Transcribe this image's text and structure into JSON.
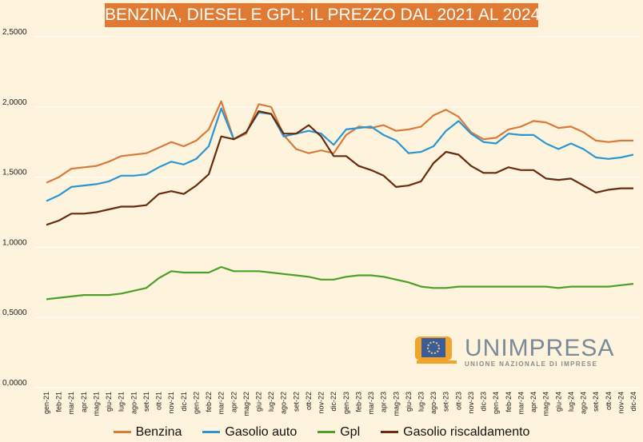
{
  "title": "BENZINA, DIESEL E GPL: IL PREZZO DAL 2021 AL 2024",
  "logo": {
    "name": "UNIMPRESA",
    "tagline": "UNIONE NAZIONALE DI IMPRESE"
  },
  "colors": {
    "background": "#fef4dd",
    "title_bg": "#e07a32",
    "grid": "#ffffff"
  },
  "chart_data": {
    "type": "line",
    "title": "BENZINA, DIESEL E GPL: IL PREZZO DAL 2021 AL 2024",
    "xlabel": "",
    "ylabel": "",
    "ylim": [
      0,
      2.5
    ],
    "yticks": [
      "0,0000",
      "0,5000",
      "1,0000",
      "1,5000",
      "2,0000",
      "2,5000"
    ],
    "grid": true,
    "legend_position": "bottom",
    "categories": [
      "gen-21",
      "feb-21",
      "mar-21",
      "apr-21",
      "mag-21",
      "giu-21",
      "lug-21",
      "ago-21",
      "set-21",
      "ott-21",
      "nov-21",
      "dic-21",
      "gen-22",
      "feb-22",
      "mar-22",
      "apr-22",
      "mag-22",
      "giu-22",
      "lug-22",
      "ago-22",
      "set-22",
      "ott-22",
      "nov-22",
      "dic-22",
      "gen-23",
      "feb-23",
      "mar-23",
      "apr-23",
      "mag-23",
      "giu-23",
      "lug-23",
      "ago-23",
      "set-23",
      "ott-23",
      "nov-23",
      "dic-23",
      "gen-24",
      "feb-24",
      "mar-24",
      "apr-24",
      "mag-24",
      "giu-24",
      "lug-24",
      "ago-24",
      "set-24",
      "ott-24",
      "nov-24",
      "dic-24"
    ],
    "series": [
      {
        "name": "Benzina",
        "color": "#d97a3a",
        "values": [
          1.46,
          1.5,
          1.56,
          1.57,
          1.58,
          1.61,
          1.65,
          1.66,
          1.67,
          1.71,
          1.75,
          1.72,
          1.76,
          1.84,
          2.04,
          1.77,
          1.81,
          2.02,
          2.0,
          1.8,
          1.7,
          1.67,
          1.69,
          1.67,
          1.8,
          1.86,
          1.85,
          1.87,
          1.83,
          1.84,
          1.86,
          1.94,
          1.98,
          1.93,
          1.82,
          1.77,
          1.78,
          1.84,
          1.86,
          1.9,
          1.89,
          1.85,
          1.86,
          1.82,
          1.76,
          1.75,
          1.76,
          1.76
        ]
      },
      {
        "name": "Gasolio auto",
        "color": "#2b96d2",
        "values": [
          1.33,
          1.37,
          1.43,
          1.44,
          1.45,
          1.47,
          1.51,
          1.51,
          1.52,
          1.57,
          1.61,
          1.59,
          1.63,
          1.72,
          1.99,
          1.77,
          1.82,
          1.96,
          1.95,
          1.79,
          1.81,
          1.83,
          1.81,
          1.73,
          1.84,
          1.85,
          1.86,
          1.8,
          1.76,
          1.67,
          1.68,
          1.72,
          1.83,
          1.9,
          1.81,
          1.75,
          1.74,
          1.81,
          1.8,
          1.8,
          1.74,
          1.7,
          1.74,
          1.7,
          1.64,
          1.63,
          1.64,
          1.66
        ]
      },
      {
        "name": "Gpl",
        "color": "#4d9f2a",
        "values": [
          0.63,
          0.64,
          0.65,
          0.66,
          0.66,
          0.66,
          0.67,
          0.69,
          0.71,
          0.78,
          0.83,
          0.82,
          0.82,
          0.82,
          0.86,
          0.83,
          0.83,
          0.83,
          0.82,
          0.81,
          0.8,
          0.79,
          0.77,
          0.77,
          0.79,
          0.8,
          0.8,
          0.79,
          0.77,
          0.75,
          0.72,
          0.71,
          0.71,
          0.72,
          0.72,
          0.72,
          0.72,
          0.72,
          0.72,
          0.72,
          0.72,
          0.71,
          0.72,
          0.72,
          0.72,
          0.72,
          0.73,
          0.74
        ]
      },
      {
        "name": "Gasolio riscaldamento",
        "color": "#6b2a0d",
        "values": [
          1.16,
          1.19,
          1.24,
          1.24,
          1.25,
          1.27,
          1.29,
          1.29,
          1.3,
          1.38,
          1.4,
          1.38,
          1.44,
          1.52,
          1.79,
          1.77,
          1.82,
          1.97,
          1.95,
          1.81,
          1.81,
          1.87,
          1.79,
          1.65,
          1.65,
          1.58,
          1.55,
          1.51,
          1.43,
          1.44,
          1.47,
          1.6,
          1.68,
          1.66,
          1.58,
          1.53,
          1.53,
          1.57,
          1.55,
          1.55,
          1.49,
          1.48,
          1.49,
          1.44,
          1.39,
          1.41,
          1.42,
          1.42
        ]
      }
    ]
  }
}
